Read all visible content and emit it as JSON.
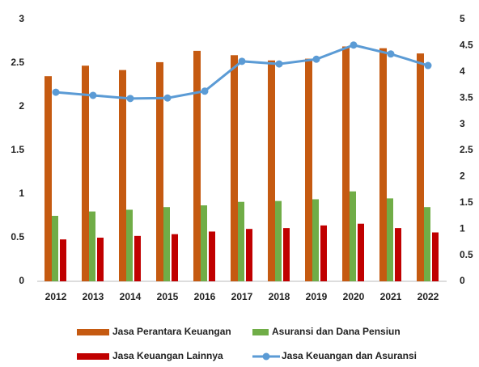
{
  "chart_data": {
    "type": "bar",
    "categories": [
      "2012",
      "2013",
      "2014",
      "2015",
      "2016",
      "2017",
      "2018",
      "2019",
      "2020",
      "2021",
      "2022"
    ],
    "series": [
      {
        "name": "Jasa Perantara Keuangan",
        "color": "#c55a11",
        "values": [
          2.35,
          2.47,
          2.42,
          2.51,
          2.64,
          2.59,
          2.53,
          2.55,
          2.69,
          2.67,
          2.61
        ]
      },
      {
        "name": "Asuransi dan Dana Pensiun",
        "color": "#70ad47",
        "values": [
          0.75,
          0.8,
          0.82,
          0.85,
          0.87,
          0.91,
          0.92,
          0.94,
          1.03,
          0.95,
          0.85
        ]
      },
      {
        "name": "Jasa Keuangan Lainnya",
        "color": "#c00000",
        "values": [
          0.48,
          0.5,
          0.52,
          0.54,
          0.57,
          0.6,
          0.61,
          0.64,
          0.66,
          0.61,
          0.56
        ]
      },
      {
        "name": "Jasa Keuangan dan Asuransi",
        "color": "#5b9bd5",
        "type": "line",
        "axis": "y2",
        "values": [
          3.61,
          3.55,
          3.49,
          3.5,
          3.63,
          4.2,
          4.15,
          4.24,
          4.51,
          4.34,
          4.12
        ]
      }
    ],
    "ylim": [
      0,
      3
    ],
    "yticks": [
      0,
      0.5,
      1,
      1.5,
      2,
      2.5,
      3
    ],
    "y2lim": [
      0,
      5
    ],
    "y2ticks": [
      0,
      0.5,
      1,
      1.5,
      2,
      2.5,
      3,
      3.5,
      4,
      4.5,
      5
    ],
    "grid": false
  }
}
